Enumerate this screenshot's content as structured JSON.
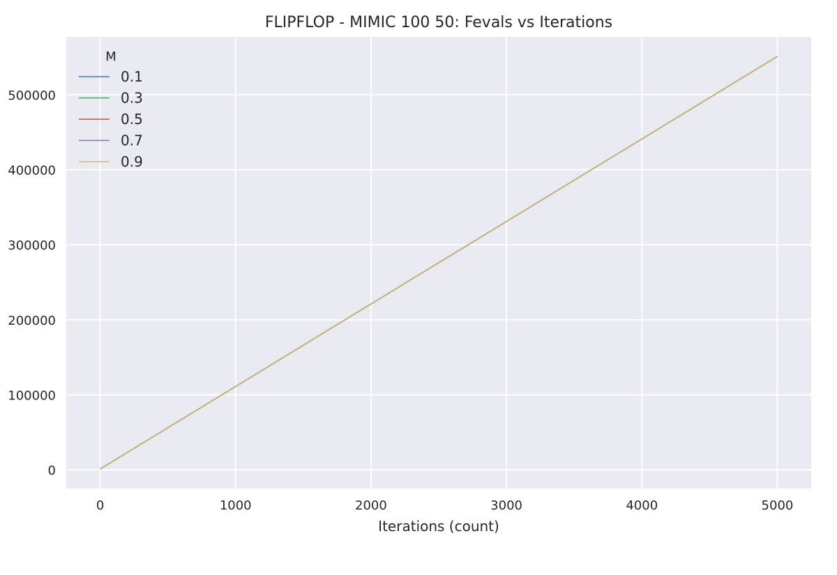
{
  "chart_data": {
    "type": "line",
    "title": "FLIPFLOP - MIMIC 100 50: Fevals vs Iterations",
    "xlabel": "Iterations (count)",
    "ylabel": "",
    "xlim": [
      -250,
      5250
    ],
    "ylim": [
      -25000,
      577000
    ],
    "x_ticks": [
      0,
      1000,
      2000,
      3000,
      4000,
      5000
    ],
    "y_ticks": [
      0,
      100000,
      200000,
      300000,
      400000,
      500000
    ],
    "grid": true,
    "legend": {
      "title": "M",
      "placement": "top-left"
    },
    "x": [
      0,
      5000
    ],
    "series": [
      {
        "name": "0.1",
        "color": "#4c72b0",
        "values": [
          1100,
          551000
        ]
      },
      {
        "name": "0.3",
        "color": "#55a868",
        "values": [
          1100,
          551000
        ]
      },
      {
        "name": "0.5",
        "color": "#c44e52",
        "values": [
          1100,
          551000
        ]
      },
      {
        "name": "0.7",
        "color": "#8172b3",
        "values": [
          1100,
          551000
        ]
      },
      {
        "name": "0.9",
        "color": "#ccb974",
        "values": [
          1100,
          551000
        ]
      }
    ]
  }
}
